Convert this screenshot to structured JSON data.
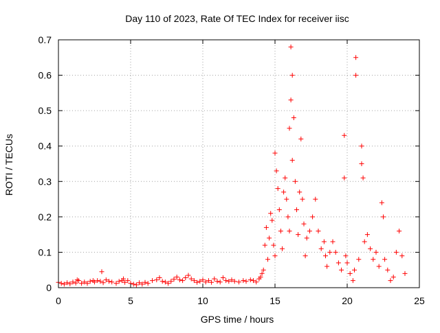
{
  "chart_data": {
    "type": "scatter",
    "title": "Day 110 of 2023, Rate Of TEC Index for receiver iisc",
    "xlabel": "GPS time / hours",
    "ylabel": "ROTI / TECUs",
    "xlim": [
      0,
      25
    ],
    "ylim": [
      0,
      0.7
    ],
    "x_ticks": [
      0,
      5,
      10,
      15,
      20,
      25
    ],
    "x_tick_labels": [
      "0",
      "5",
      "10",
      "15",
      "20",
      "25"
    ],
    "y_ticks": [
      0,
      0.1,
      0.2,
      0.3,
      0.4,
      0.5,
      0.6,
      0.7
    ],
    "y_tick_labels": [
      "0",
      "0.1",
      "0.2",
      "0.3",
      "0.4",
      "0.5",
      "0.6",
      "0.7"
    ],
    "grid": true,
    "marker": "+",
    "series": [
      {
        "name": "ROTI",
        "color": "#ff0000",
        "points": [
          [
            0.0,
            0.015
          ],
          [
            0.2,
            0.012
          ],
          [
            0.4,
            0.01
          ],
          [
            0.6,
            0.014
          ],
          [
            0.8,
            0.011
          ],
          [
            1.0,
            0.016
          ],
          [
            1.2,
            0.013
          ],
          [
            1.3,
            0.022
          ],
          [
            1.4,
            0.02
          ],
          [
            1.6,
            0.012
          ],
          [
            1.8,
            0.016
          ],
          [
            2.0,
            0.012
          ],
          [
            2.2,
            0.018
          ],
          [
            2.4,
            0.02
          ],
          [
            2.5,
            0.016
          ],
          [
            2.7,
            0.02
          ],
          [
            2.9,
            0.018
          ],
          [
            3.0,
            0.045
          ],
          [
            3.1,
            0.014
          ],
          [
            3.3,
            0.022
          ],
          [
            3.5,
            0.018
          ],
          [
            3.7,
            0.016
          ],
          [
            4.0,
            0.012
          ],
          [
            4.2,
            0.018
          ],
          [
            4.4,
            0.02
          ],
          [
            4.5,
            0.025
          ],
          [
            4.6,
            0.015
          ],
          [
            4.8,
            0.02
          ],
          [
            5.0,
            0.012
          ],
          [
            5.2,
            0.01
          ],
          [
            5.4,
            0.008
          ],
          [
            5.6,
            0.014
          ],
          [
            5.8,
            0.01
          ],
          [
            6.0,
            0.015
          ],
          [
            6.2,
            0.012
          ],
          [
            6.5,
            0.02
          ],
          [
            6.8,
            0.022
          ],
          [
            7.0,
            0.028
          ],
          [
            7.2,
            0.018
          ],
          [
            7.4,
            0.016
          ],
          [
            7.6,
            0.012
          ],
          [
            7.8,
            0.018
          ],
          [
            8.0,
            0.024
          ],
          [
            8.2,
            0.03
          ],
          [
            8.4,
            0.022
          ],
          [
            8.6,
            0.02
          ],
          [
            8.8,
            0.028
          ],
          [
            9.0,
            0.035
          ],
          [
            9.2,
            0.025
          ],
          [
            9.4,
            0.02
          ],
          [
            9.6,
            0.015
          ],
          [
            9.8,
            0.018
          ],
          [
            10.0,
            0.022
          ],
          [
            10.2,
            0.016
          ],
          [
            10.4,
            0.02
          ],
          [
            10.6,
            0.015
          ],
          [
            10.8,
            0.025
          ],
          [
            11.0,
            0.018
          ],
          [
            11.2,
            0.016
          ],
          [
            11.4,
            0.028
          ],
          [
            11.6,
            0.02
          ],
          [
            11.8,
            0.018
          ],
          [
            12.0,
            0.022
          ],
          [
            12.2,
            0.018
          ],
          [
            12.5,
            0.016
          ],
          [
            12.8,
            0.02
          ],
          [
            13.0,
            0.018
          ],
          [
            13.3,
            0.022
          ],
          [
            13.5,
            0.02
          ],
          [
            13.7,
            0.016
          ],
          [
            13.9,
            0.025
          ],
          [
            14.0,
            0.03
          ],
          [
            14.1,
            0.04
          ],
          [
            14.2,
            0.05
          ],
          [
            14.3,
            0.12
          ],
          [
            14.4,
            0.17
          ],
          [
            14.5,
            0.08
          ],
          [
            14.6,
            0.14
          ],
          [
            14.7,
            0.21
          ],
          [
            14.8,
            0.19
          ],
          [
            14.9,
            0.12
          ],
          [
            15.0,
            0.09
          ],
          [
            15.0,
            0.38
          ],
          [
            15.1,
            0.33
          ],
          [
            15.2,
            0.28
          ],
          [
            15.3,
            0.22
          ],
          [
            15.4,
            0.16
          ],
          [
            15.5,
            0.11
          ],
          [
            15.6,
            0.27
          ],
          [
            15.7,
            0.31
          ],
          [
            15.8,
            0.25
          ],
          [
            15.9,
            0.2
          ],
          [
            16.0,
            0.16
          ],
          [
            16.0,
            0.45
          ],
          [
            16.1,
            0.53
          ],
          [
            16.1,
            0.68
          ],
          [
            16.2,
            0.6
          ],
          [
            16.2,
            0.36
          ],
          [
            16.3,
            0.48
          ],
          [
            16.4,
            0.3
          ],
          [
            16.5,
            0.22
          ],
          [
            16.6,
            0.15
          ],
          [
            16.7,
            0.27
          ],
          [
            16.8,
            0.42
          ],
          [
            16.9,
            0.25
          ],
          [
            17.0,
            0.18
          ],
          [
            17.1,
            0.09
          ],
          [
            17.2,
            0.14
          ],
          [
            17.4,
            0.16
          ],
          [
            17.6,
            0.2
          ],
          [
            17.8,
            0.25
          ],
          [
            18.0,
            0.16
          ],
          [
            18.2,
            0.11
          ],
          [
            18.4,
            0.13
          ],
          [
            18.5,
            0.09
          ],
          [
            18.6,
            0.06
          ],
          [
            18.8,
            0.1
          ],
          [
            19.0,
            0.13
          ],
          [
            19.2,
            0.1
          ],
          [
            19.4,
            0.07
          ],
          [
            19.6,
            0.05
          ],
          [
            19.8,
            0.43
          ],
          [
            19.8,
            0.31
          ],
          [
            19.9,
            0.09
          ],
          [
            20.0,
            0.07
          ],
          [
            20.2,
            0.04
          ],
          [
            20.4,
            0.02
          ],
          [
            20.5,
            0.05
          ],
          [
            20.6,
            0.65
          ],
          [
            20.6,
            0.6
          ],
          [
            20.8,
            0.08
          ],
          [
            21.0,
            0.4
          ],
          [
            21.0,
            0.35
          ],
          [
            21.1,
            0.31
          ],
          [
            21.2,
            0.13
          ],
          [
            21.4,
            0.15
          ],
          [
            21.6,
            0.11
          ],
          [
            21.8,
            0.08
          ],
          [
            22.0,
            0.1
          ],
          [
            22.2,
            0.06
          ],
          [
            22.4,
            0.24
          ],
          [
            22.5,
            0.2
          ],
          [
            22.6,
            0.08
          ],
          [
            22.8,
            0.05
          ],
          [
            23.0,
            0.02
          ],
          [
            23.2,
            0.03
          ],
          [
            23.4,
            0.1
          ],
          [
            23.6,
            0.16
          ],
          [
            23.8,
            0.09
          ],
          [
            24.0,
            0.04
          ]
        ]
      }
    ]
  }
}
